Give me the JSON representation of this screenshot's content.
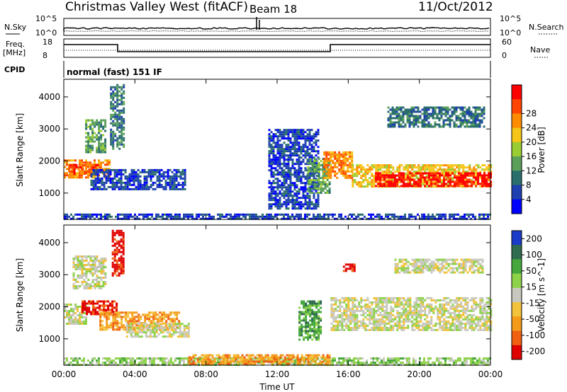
{
  "header": {
    "station": "Christmas Valley West (fitACF)",
    "beam": "Beam 18",
    "date": "11/Oct/2012"
  },
  "noise_panel": {
    "left_label": "N.Sky",
    "right_label": "N.Search",
    "left_ticks": [
      "10^5",
      "10^0"
    ],
    "right_ticks": [
      "10^5",
      "10^0"
    ]
  },
  "freq_panel": {
    "left_label_1": "Freq.",
    "left_label_2": "[MHz]",
    "right_label": "Nave",
    "left_ticks": [
      "18",
      "8"
    ],
    "right_ticks": [
      "60",
      "0"
    ]
  },
  "cpid": {
    "label": "CPID",
    "mode": "normal (fast) 151 IF"
  },
  "colors": {
    "power_scale": [
      "#0000ff",
      "#1d3fb0",
      "#2a6e6e",
      "#5aa05a",
      "#9acd32",
      "#f5c518",
      "#ff8c00",
      "#ff4500",
      "#ff0000"
    ],
    "velocity_scale": [
      "#1a3cc8",
      "#2f6b4f",
      "#46a83c",
      "#8ed24a",
      "#c8c8bf",
      "#f2c23a",
      "#f59b1a",
      "#f06010",
      "#e00000"
    ]
  },
  "chart_data": [
    {
      "type": "heatmap",
      "name": "power",
      "xlabel": "",
      "ylabel": "Slant Range [km]",
      "xlim": [
        0,
        24
      ],
      "ylim": [
        180,
        4550
      ],
      "x_ticks": [
        "00:00",
        "04:00",
        "08:00",
        "12:00",
        "16:00",
        "20:00",
        "00:00"
      ],
      "y_ticks": [
        1000,
        2000,
        3000,
        4000
      ],
      "colorbar_label": "Power [dB]",
      "colorbar_ticks": [
        "4",
        "8",
        "12",
        "16",
        "20",
        "24",
        "28"
      ],
      "features": [
        {
          "t0": 0.0,
          "t1": 2.6,
          "r0": 1500,
          "r1": 2050,
          "level": 6
        },
        {
          "t0": 0.3,
          "t1": 2.0,
          "r0": 1600,
          "r1": 1900,
          "level": 7
        },
        {
          "t0": 1.5,
          "t1": 6.8,
          "r0": 1150,
          "r1": 1750,
          "level": 1
        },
        {
          "t0": 1.2,
          "t1": 2.3,
          "r0": 2300,
          "r1": 3300,
          "level": 3
        },
        {
          "t0": 2.6,
          "t1": 3.4,
          "r0": 2400,
          "r1": 4400,
          "level": 2
        },
        {
          "t0": 11.5,
          "t1": 14.3,
          "r0": 500,
          "r1": 3000,
          "level": 1
        },
        {
          "t0": 13.7,
          "t1": 14.9,
          "r0": 1000,
          "r1": 2100,
          "level": 3
        },
        {
          "t0": 14.6,
          "t1": 16.2,
          "r0": 1450,
          "r1": 2300,
          "level": 6
        },
        {
          "t0": 16.2,
          "t1": 24.0,
          "r0": 1200,
          "r1": 1900,
          "level": 5
        },
        {
          "t0": 17.5,
          "t1": 24.0,
          "r0": 1250,
          "r1": 1650,
          "level": 8
        },
        {
          "t0": 18.2,
          "t1": 23.6,
          "r0": 3100,
          "r1": 3700,
          "level": 2
        },
        {
          "t0": 0.0,
          "t1": 24.0,
          "r0": 190,
          "r1": 360,
          "level": 1
        }
      ]
    },
    {
      "type": "heatmap",
      "name": "velocity",
      "xlabel": "Time UT",
      "ylabel": "Slant Range [km]",
      "xlim": [
        0,
        24
      ],
      "ylim": [
        180,
        4550
      ],
      "x_ticks": [
        "00:00",
        "04:00",
        "08:00",
        "12:00",
        "16:00",
        "20:00",
        "00:00"
      ],
      "y_ticks": [
        1000,
        2000,
        3000,
        4000
      ],
      "colorbar_label": "Velocity [m s^-1]",
      "colorbar_ticks": [
        "200",
        "100",
        "50",
        "15",
        "-15",
        "-50",
        "-100",
        "-200"
      ],
      "features": [
        {
          "t0": 0.0,
          "t1": 1.2,
          "r0": 1500,
          "r1": 2100,
          "level": 4
        },
        {
          "t0": 1.0,
          "t1": 3.0,
          "r0": 1800,
          "r1": 2200,
          "level": 8
        },
        {
          "t0": 2.0,
          "t1": 6.5,
          "r0": 1300,
          "r1": 1850,
          "level": 6
        },
        {
          "t0": 3.5,
          "t1": 7.0,
          "r0": 1100,
          "r1": 1500,
          "level": 4
        },
        {
          "t0": 0.5,
          "t1": 2.3,
          "r0": 2600,
          "r1": 3600,
          "level": 4
        },
        {
          "t0": 2.7,
          "t1": 3.3,
          "r0": 3000,
          "r1": 4400,
          "level": 8
        },
        {
          "t0": 13.2,
          "t1": 14.5,
          "r0": 1000,
          "r1": 2200,
          "level": 2
        },
        {
          "t0": 15.0,
          "t1": 24.0,
          "r0": 1250,
          "r1": 2300,
          "level": 4
        },
        {
          "t0": 18.6,
          "t1": 23.6,
          "r0": 3100,
          "r1": 3500,
          "level": 4
        },
        {
          "t0": 15.7,
          "t1": 16.4,
          "r0": 3150,
          "r1": 3350,
          "level": 8
        },
        {
          "t0": 0.0,
          "t1": 24.0,
          "r0": 190,
          "r1": 420,
          "level": 3
        },
        {
          "t0": 7.0,
          "t1": 15.0,
          "r0": 190,
          "r1": 520,
          "level": 6
        }
      ]
    }
  ]
}
